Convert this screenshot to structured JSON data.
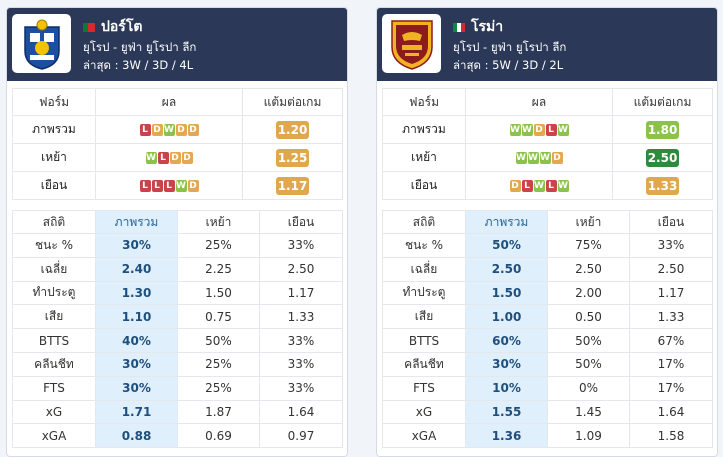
{
  "cards": [
    {
      "team": "ปอร์โต",
      "flag": "portugal-flag",
      "league": "ยุโรป - ยูฟ่า ยูโรปา ลีก",
      "recent": "ล่าสุด : 3W / 3D / 4L",
      "form_headers": [
        "ฟอร์ม",
        "ผล",
        "แต้มต่อเกม"
      ],
      "form_rows": [
        {
          "label": "ภาพรวม",
          "results": [
            "L",
            "D",
            "W",
            "D",
            "D"
          ],
          "ppg": "1.20",
          "ppg_color": "#e0a84e"
        },
        {
          "label": "เหย้า",
          "results": [
            "W",
            "L",
            "D",
            "D"
          ],
          "ppg": "1.25",
          "ppg_color": "#e0a84e"
        },
        {
          "label": "เยือน",
          "results": [
            "L",
            "L",
            "L",
            "W",
            "D"
          ],
          "ppg": "1.17",
          "ppg_color": "#e0a84e"
        }
      ],
      "stats_headers": [
        "สถิติ",
        "ภาพรวม",
        "เหย้า",
        "เยือน"
      ],
      "stats_rows": [
        {
          "label": "ชนะ %",
          "overall": "30%",
          "home": "25%",
          "away": "33%"
        },
        {
          "label": "เฉลี่ย",
          "overall": "2.40",
          "home": "2.25",
          "away": "2.50"
        },
        {
          "label": "ทำประตู",
          "overall": "1.30",
          "home": "1.50",
          "away": "1.17"
        },
        {
          "label": "เสีย",
          "overall": "1.10",
          "home": "0.75",
          "away": "1.33"
        },
        {
          "label": "BTTS",
          "overall": "40%",
          "home": "50%",
          "away": "33%"
        },
        {
          "label": "คลีนชีท",
          "overall": "30%",
          "home": "25%",
          "away": "33%"
        },
        {
          "label": "FTS",
          "overall": "30%",
          "home": "25%",
          "away": "33%"
        },
        {
          "label": "xG",
          "overall": "1.71",
          "home": "1.87",
          "away": "1.64"
        },
        {
          "label": "xGA",
          "overall": "0.88",
          "home": "0.69",
          "away": "0.97"
        }
      ]
    },
    {
      "team": "โรม่า",
      "flag": "italy-flag",
      "league": "ยุโรป - ยูฟ่า ยูโรปา ลีก",
      "recent": "ล่าสุด : 5W / 3D / 2L",
      "form_headers": [
        "ฟอร์ม",
        "ผล",
        "แต้มต่อเกม"
      ],
      "form_rows": [
        {
          "label": "ภาพรวม",
          "results": [
            "W",
            "W",
            "D",
            "L",
            "W"
          ],
          "ppg": "1.80",
          "ppg_color": "#8bc34a"
        },
        {
          "label": "เหย้า",
          "results": [
            "W",
            "W",
            "W",
            "D"
          ],
          "ppg": "2.50",
          "ppg_color": "#2e8b3e"
        },
        {
          "label": "เยือน",
          "results": [
            "D",
            "L",
            "W",
            "L",
            "W"
          ],
          "ppg": "1.33",
          "ppg_color": "#e0a84e"
        }
      ],
      "stats_headers": [
        "สถิติ",
        "ภาพรวม",
        "เหย้า",
        "เยือน"
      ],
      "stats_rows": [
        {
          "label": "ชนะ %",
          "overall": "50%",
          "home": "75%",
          "away": "33%"
        },
        {
          "label": "เฉลี่ย",
          "overall": "2.50",
          "home": "2.50",
          "away": "2.50"
        },
        {
          "label": "ทำประตู",
          "overall": "1.50",
          "home": "2.00",
          "away": "1.17"
        },
        {
          "label": "เสีย",
          "overall": "1.00",
          "home": "0.50",
          "away": "1.33"
        },
        {
          "label": "BTTS",
          "overall": "60%",
          "home": "50%",
          "away": "67%"
        },
        {
          "label": "คลีนชีท",
          "overall": "30%",
          "home": "50%",
          "away": "17%"
        },
        {
          "label": "FTS",
          "overall": "10%",
          "home": "0%",
          "away": "17%"
        },
        {
          "label": "xG",
          "overall": "1.55",
          "home": "1.45",
          "away": "1.64"
        },
        {
          "label": "xGA",
          "overall": "1.36",
          "home": "1.09",
          "away": "1.58"
        }
      ]
    }
  ]
}
